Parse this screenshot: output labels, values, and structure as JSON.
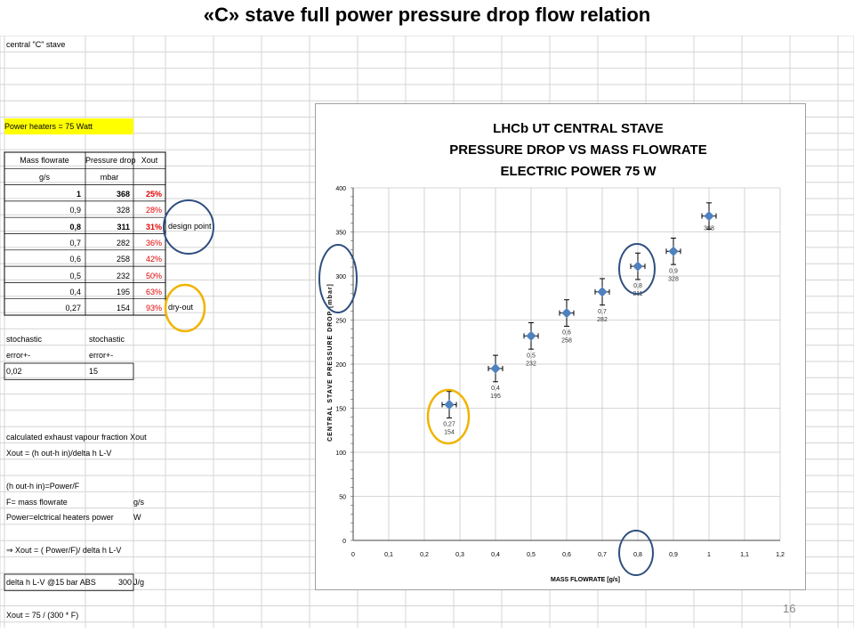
{
  "slide": {
    "title": "«C» stave full power pressure drop flow relation",
    "page_number": "16"
  },
  "spreadsheet": {
    "sheet_title": "central \"C\" stave",
    "power_label": "Power heaters = 75 Watt",
    "table_headers": [
      "Mass flowrate",
      "Pressure drop",
      "Xout"
    ],
    "table_units": [
      "g/s",
      "mbar",
      ""
    ],
    "table_rows": [
      {
        "flow": "1",
        "pressure": "368",
        "xout": "25%"
      },
      {
        "flow": "0,9",
        "pressure": "328",
        "xout": "28%"
      },
      {
        "flow": "0,8",
        "pressure": "311",
        "xout": "31%"
      },
      {
        "flow": "0,7",
        "pressure": "282",
        "xout": "36%"
      },
      {
        "flow": "0,6",
        "pressure": "258",
        "xout": "42%"
      },
      {
        "flow": "0,5",
        "pressure": "232",
        "xout": "50%"
      },
      {
        "flow": "0,4",
        "pressure": "195",
        "xout": "63%"
      },
      {
        "flow": "0,27",
        "pressure": "154",
        "xout": "93%"
      }
    ],
    "design_point_note": "design point",
    "dry_out_note": "dry-out",
    "stochastic_label_1": "stochastic",
    "stochastic_label_2": "stochastic",
    "error_label_1": "error+-",
    "error_label_2": "error+-",
    "error_value_1": "0,02",
    "error_value_2": "15",
    "calc_line_1": "calculated exhaust vapour fraction Xout",
    "calc_line_2": "Xout = (h out-h in)/delta h L-V",
    "calc_line_3": "(h out-h in)=Power/F",
    "calc_line_4_label": "F= mass flowrate",
    "calc_line_4_unit": "g/s",
    "calc_line_5_label": "Power=elctrical heaters power",
    "calc_line_5_unit": "W",
    "calc_line_6": "⇒ Xout = ( Power/F)/ delta h L-V",
    "delta_label": "delta h L-V @15 bar ABS",
    "delta_value": "300",
    "delta_unit": "J/g",
    "xout_formula": "Xout = 75 / (300 * F)"
  },
  "chart_data": {
    "type": "scatter",
    "title_lines": [
      "LHCb UT CENTRAL STAVE",
      "PRESSURE DROP VS MASS FLOWRATE",
      "ELECTRIC POWER 75  W"
    ],
    "xlabel": "MASS FLOWRATE [g/s]",
    "ylabel": "CENTRAL STAVE PRESSURE DROP [mbar]",
    "xlim": [
      0,
      1.2
    ],
    "ylim": [
      0,
      400
    ],
    "x_ticks": [
      "0",
      "0,1",
      "0,2",
      "0,3",
      "0,4",
      "0,5",
      "0,6",
      "0,7",
      "0,8",
      "0,9",
      "1",
      "1,1",
      "1,2"
    ],
    "y_ticks": [
      "0",
      "50",
      "100",
      "150",
      "200",
      "250",
      "300",
      "350",
      "400"
    ],
    "grid": true,
    "x": [
      0.27,
      0.4,
      0.5,
      0.6,
      0.7,
      0.8,
      0.9,
      1.0
    ],
    "y": [
      154,
      195,
      232,
      258,
      282,
      311,
      328,
      368
    ],
    "x_error": 0.02,
    "y_error": 15,
    "point_labels": [
      [
        "0,27",
        "154"
      ],
      [
        "0,4",
        "195"
      ],
      [
        "0,5",
        "232"
      ],
      [
        "0,6",
        "258"
      ],
      [
        "0,7",
        "282"
      ],
      [
        "0,8",
        "311"
      ],
      [
        "0,9",
        "328"
      ],
      [
        "368"
      ]
    ],
    "point_color": "#4f81bd"
  }
}
